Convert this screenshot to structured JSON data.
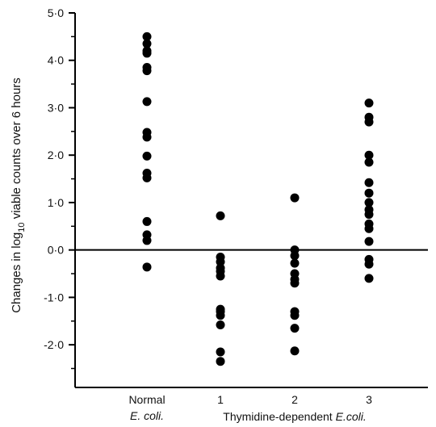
{
  "chart_data": {
    "type": "scatter",
    "title": "",
    "ylabel": {
      "before": "Changes in log",
      "subscript": "10",
      "after": " viable counts over 6 hours"
    },
    "ylim": [
      -2.9,
      5.0
    ],
    "yticks": [
      {
        "value": 5.0,
        "label": "5·0"
      },
      {
        "value": 4.0,
        "label": "4·0"
      },
      {
        "value": 3.0,
        "label": "3·0"
      },
      {
        "value": 2.0,
        "label": "2·0"
      },
      {
        "value": 1.0,
        "label": "1·0"
      },
      {
        "value": 0.0,
        "label": "0·0"
      },
      {
        "value": -1.0,
        "label": "-1·0"
      },
      {
        "value": -2.0,
        "label": "-2·0"
      }
    ],
    "reference_line": 0.0,
    "categories": [
      {
        "label": "Normal",
        "sublabel": "E. coli.",
        "values": [
          4.5,
          4.35,
          4.2,
          4.15,
          3.85,
          3.78,
          3.13,
          2.48,
          2.38,
          1.98,
          1.62,
          1.52,
          0.6,
          0.32,
          0.2,
          -0.36
        ]
      },
      {
        "label": "1",
        "sublabel": "",
        "values": [
          0.72,
          -0.15,
          -0.25,
          -0.38,
          -0.45,
          -0.55,
          -1.25,
          -1.3,
          -1.38,
          -1.58,
          -2.15,
          -2.35
        ]
      },
      {
        "label": "2",
        "sublabel": "",
        "values": [
          1.1,
          0.0,
          -0.12,
          -0.28,
          -0.5,
          -0.62,
          -0.7,
          -1.3,
          -1.38,
          -1.65,
          -2.13
        ]
      },
      {
        "label": "3",
        "sublabel": "",
        "values": [
          3.1,
          2.8,
          2.7,
          2.0,
          1.85,
          1.42,
          1.2,
          1.0,
          0.85,
          0.75,
          0.55,
          0.45,
          0.18,
          -0.2,
          -0.3,
          -0.6
        ]
      }
    ],
    "group_label": {
      "text": "Thymidine-dependent",
      "italic_suffix": "E.coli."
    },
    "grid": false,
    "legend": "none"
  }
}
